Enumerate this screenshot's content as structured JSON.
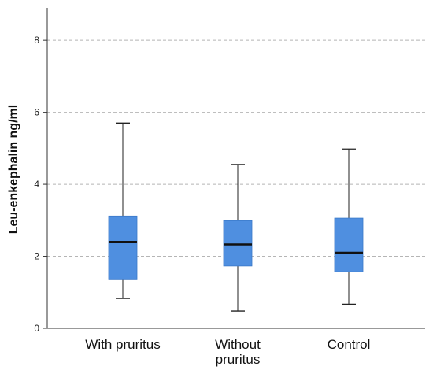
{
  "chart_data": {
    "type": "box",
    "ylabel": "Leu-enkephalin ng/ml",
    "xlabel": "",
    "ylim": [
      0,
      8.9
    ],
    "yticks": [
      "0",
      "2",
      "4",
      "6",
      "8"
    ],
    "grid": "horizontal dashed",
    "box_color": "#4f8fe0",
    "categories": [
      {
        "label_lines": [
          "With pruritus"
        ],
        "min": 0.83,
        "q1": 1.37,
        "median": 2.4,
        "q3": 3.12,
        "max": 5.7
      },
      {
        "label_lines": [
          "Without",
          "pruritus"
        ],
        "min": 0.48,
        "q1": 1.73,
        "median": 2.33,
        "q3": 2.99,
        "max": 4.55
      },
      {
        "label_lines": [
          "Control"
        ],
        "min": 0.67,
        "q1": 1.57,
        "median": 2.1,
        "q3": 3.06,
        "max": 4.98
      }
    ]
  }
}
